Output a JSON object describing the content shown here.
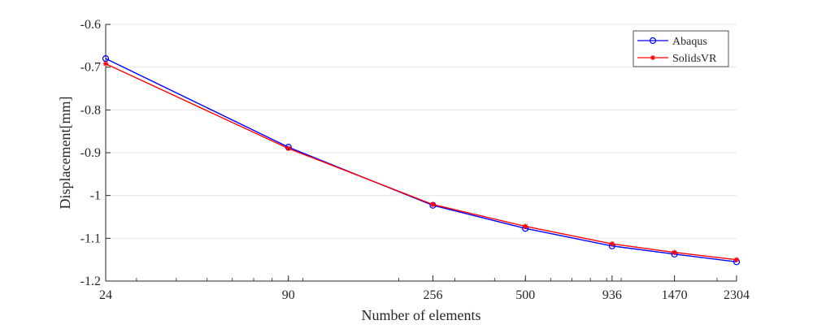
{
  "chart_data": {
    "type": "line",
    "title": "",
    "xlabel": "Number of elements",
    "ylabel": "Displacement[mm]",
    "x_scale": "log",
    "x": [
      24,
      90,
      256,
      500,
      936,
      1470,
      2304
    ],
    "x_tick_labels": [
      "24",
      "90",
      "256",
      "500",
      "936",
      "1470",
      "2304"
    ],
    "xlim": [
      24,
      2304
    ],
    "ylim": [
      -1.2,
      -0.6
    ],
    "y_ticks": [
      -0.6,
      -0.7,
      -0.8,
      -0.9,
      -1.0,
      -1.1,
      -1.2
    ],
    "y_tick_labels": [
      "-0.6",
      "-0.7",
      "-0.8",
      "-0.9",
      "-1",
      "-1.1",
      "-1.2"
    ],
    "grid": "horizontal",
    "legend_position": "top-right",
    "series": [
      {
        "name": "Abaqus",
        "color": "#0000ff",
        "marker": "circle",
        "values": [
          -0.68,
          -0.887,
          -1.023,
          -1.077,
          -1.118,
          -1.137,
          -1.155
        ]
      },
      {
        "name": "SolidsVR",
        "color": "#ff0000",
        "marker": "asterisk",
        "values": [
          -0.692,
          -0.89,
          -1.021,
          -1.072,
          -1.113,
          -1.133,
          -1.15
        ]
      }
    ]
  }
}
